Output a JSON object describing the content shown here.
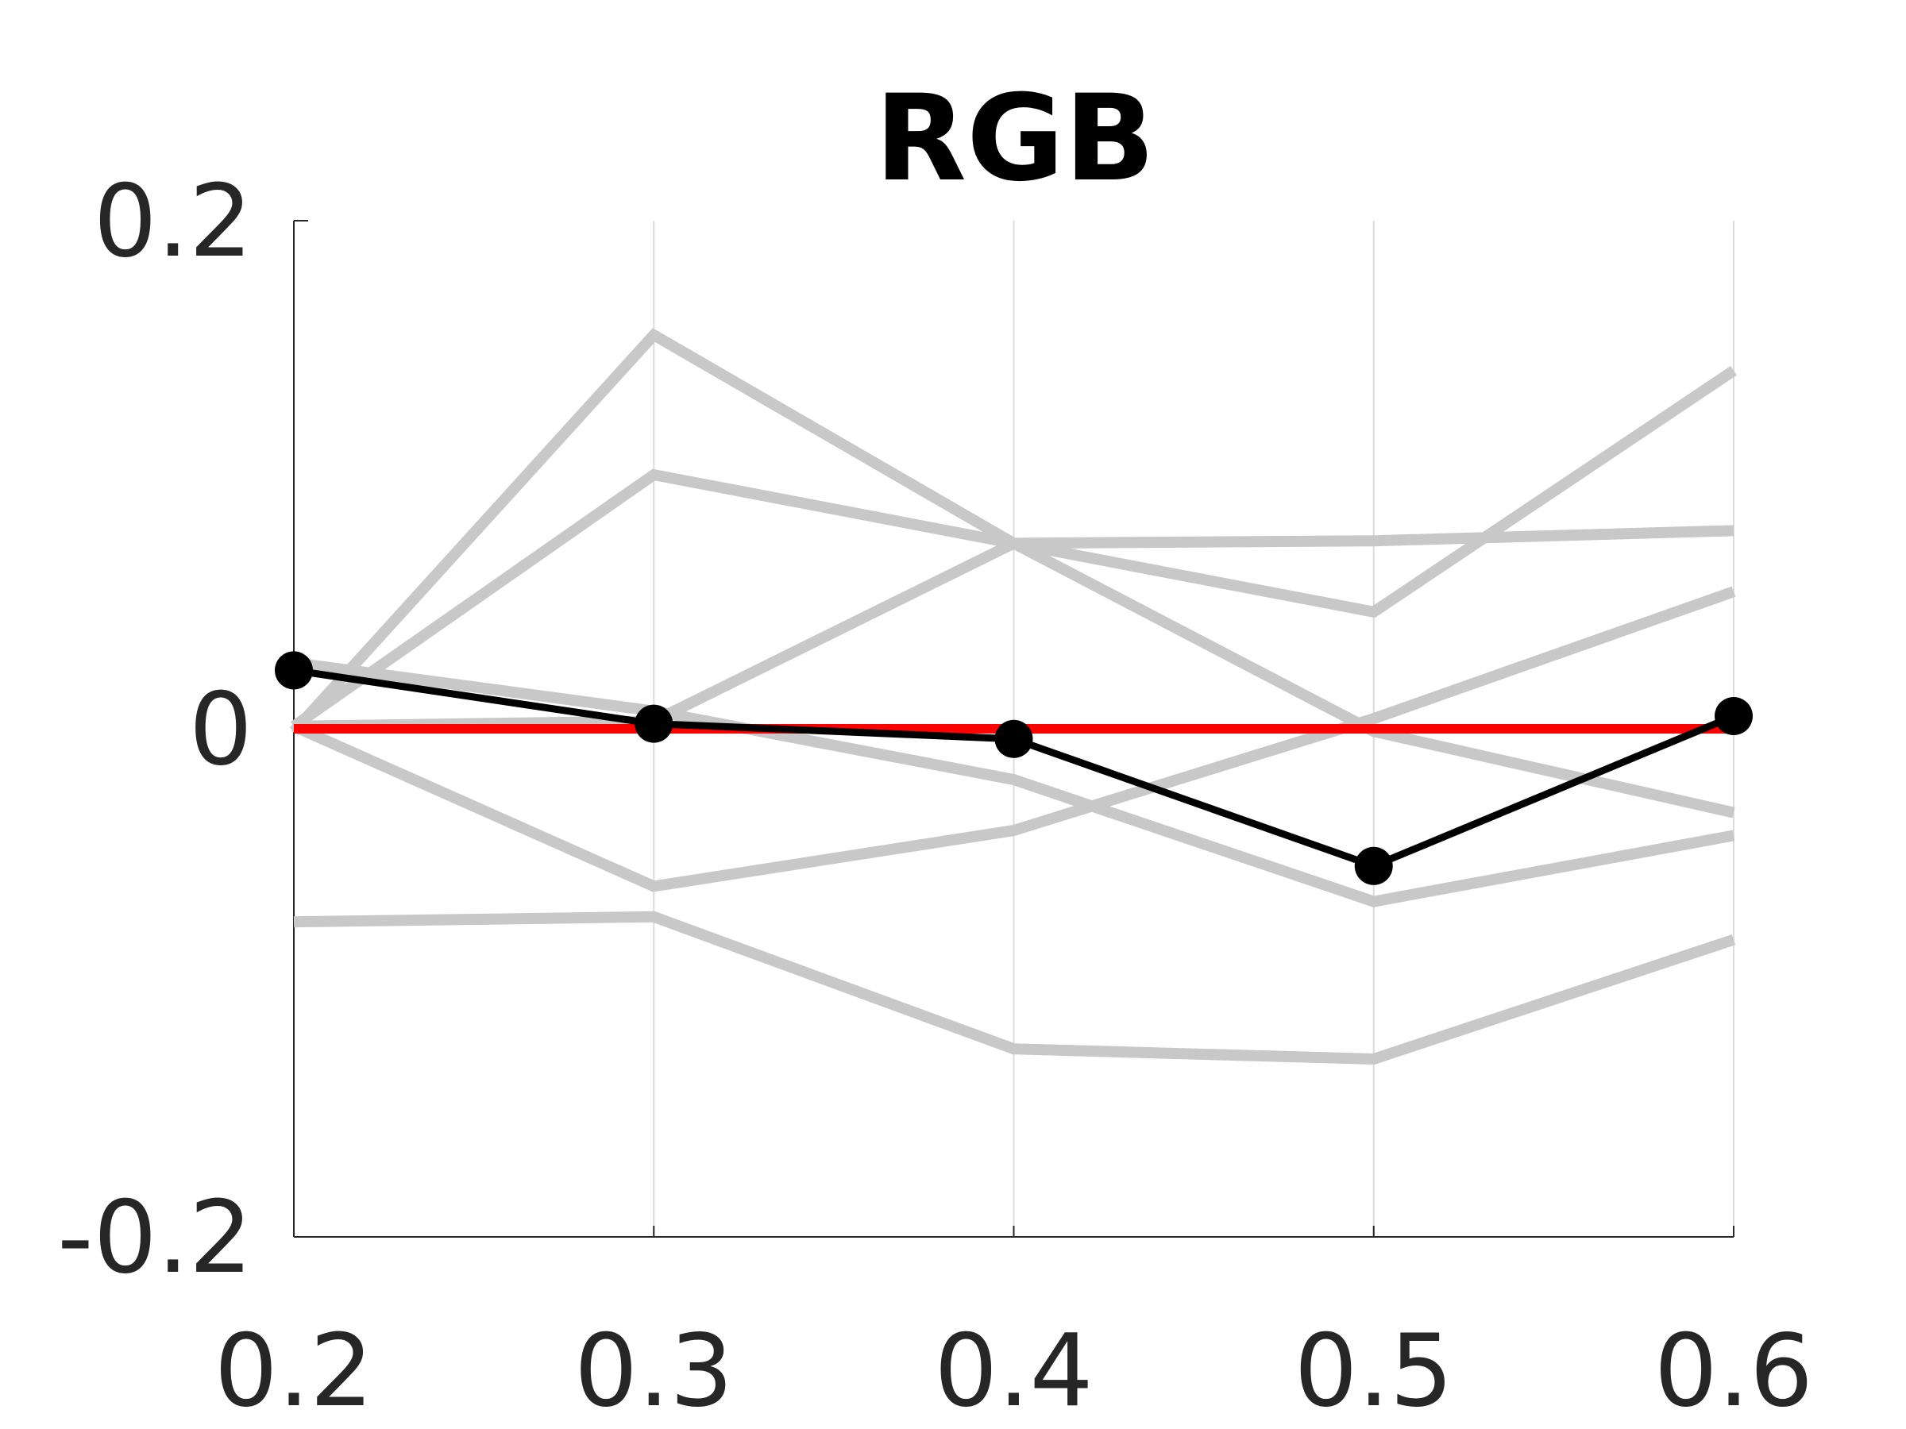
{
  "chart_data": {
    "type": "line",
    "title": "RGB",
    "xlabel": "",
    "ylabel": "",
    "x": [
      0.2,
      0.3,
      0.4,
      0.5,
      0.6
    ],
    "x_tick_labels": [
      "0.2",
      "0.3",
      "0.4",
      "0.5",
      "0.6"
    ],
    "y_ticks": [
      -0.2,
      0,
      0.2
    ],
    "y_tick_labels": [
      "-0.2",
      "0",
      "0.2"
    ],
    "xlim": [
      0.2,
      0.6
    ],
    "ylim": [
      -0.2,
      0.2
    ],
    "grid": "vertical",
    "background_series": [
      {
        "values": [
          -0.001,
          0.155,
          0.073,
          -0.001,
          -0.033
        ]
      },
      {
        "values": [
          0.001,
          0.1,
          0.073,
          0.046,
          0.141
        ]
      },
      {
        "values": [
          0.026,
          0.007,
          -0.02,
          -0.068,
          -0.042
        ]
      },
      {
        "values": [
          0.001,
          0.003,
          0.073,
          0.074,
          0.078
        ]
      },
      {
        "values": [
          0.001,
          -0.062,
          -0.04,
          0.004,
          0.054
        ]
      },
      {
        "values": [
          -0.076,
          -0.074,
          -0.126,
          -0.13,
          -0.083
        ]
      }
    ],
    "series": [
      {
        "values": [
          0.023,
          0.002,
          -0.004,
          -0.054,
          0.005
        ]
      }
    ],
    "reference_line": {
      "y": 0
    },
    "colors": {
      "background": "#c8c8c8",
      "highlight": "#000000",
      "reference": "#ff0000"
    }
  }
}
